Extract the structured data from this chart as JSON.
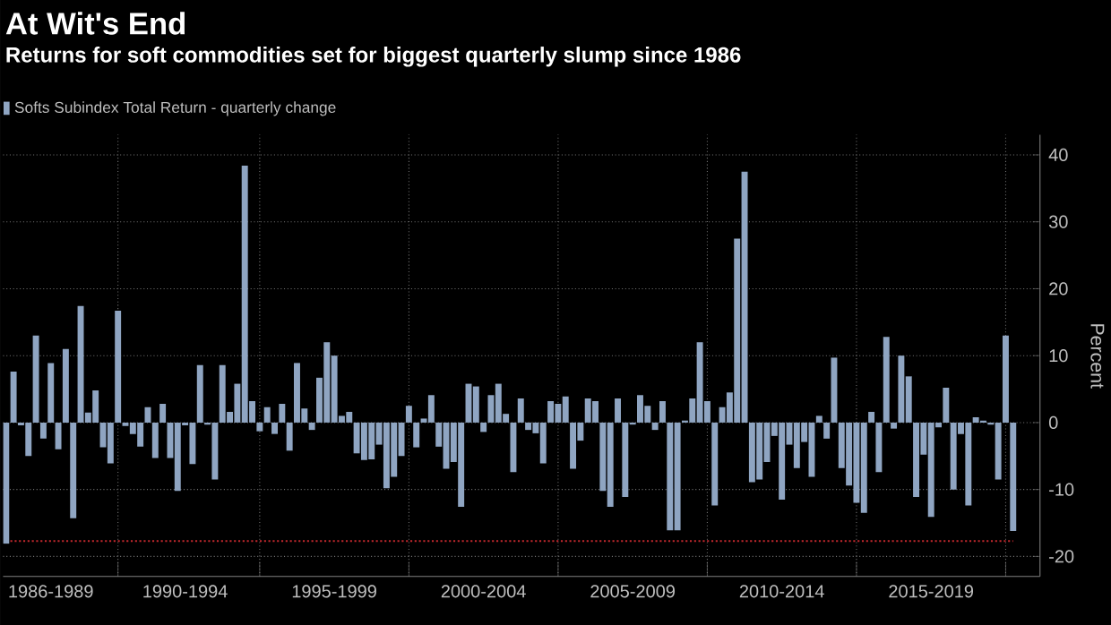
{
  "chart_data": {
    "type": "bar",
    "title": "At Wit's End",
    "subtitle": "Returns for soft commodities set for biggest quarterly slump since 1986",
    "ylabel": "Percent",
    "categories": [
      null,
      null,
      null,
      null,
      null,
      null,
      "1986-1989",
      null,
      null,
      null,
      null,
      null,
      null,
      null,
      null,
      null,
      null,
      null,
      null,
      null,
      null,
      null,
      null,
      null,
      "1990-1994",
      null,
      null,
      null,
      null,
      null,
      null,
      null,
      null,
      null,
      null,
      null,
      null,
      null,
      null,
      null,
      null,
      null,
      null,
      null,
      "1995-1999",
      null,
      null,
      null,
      null,
      null,
      null,
      null,
      null,
      null,
      null,
      null,
      null,
      null,
      null,
      null,
      null,
      null,
      null,
      null,
      "2000-2004",
      null,
      null,
      null,
      null,
      null,
      null,
      null,
      null,
      null,
      null,
      null,
      null,
      null,
      null,
      null,
      null,
      null,
      null,
      null,
      "2005-2009",
      null,
      null,
      null,
      null,
      null,
      null,
      null,
      null,
      null,
      null,
      null,
      null,
      null,
      null,
      null,
      null,
      null,
      null,
      null,
      "2010-2014",
      null,
      null,
      null,
      null,
      null,
      null,
      null,
      null,
      null,
      null,
      null,
      null,
      null,
      null,
      null,
      null,
      null,
      null,
      null,
      "2015-2019",
      null,
      null,
      null,
      null,
      null,
      null,
      null,
      null,
      null,
      null,
      null
    ],
    "series": [
      {
        "name": "Softs Subindex Total Return - quarterly change",
        "color": "#8fa5c2",
        "values": [
          -18.1,
          7.6,
          -0.4,
          -5,
          13,
          -2.4,
          8.9,
          -4,
          11,
          -14.3,
          17.4,
          1.5,
          4.8,
          -3.7,
          -6.1,
          16.7,
          -0.5,
          -1.7,
          -3.6,
          2.3,
          -5.3,
          2.8,
          -5.3,
          -10.2,
          -0.4,
          -6.2,
          8.6,
          -0.3,
          -8.5,
          8.6,
          1.6,
          5.8,
          38.4,
          3.2,
          -1.3,
          2.3,
          -1.7,
          2.8,
          -4.2,
          8.9,
          2.1,
          -1.1,
          6.7,
          12,
          10,
          1,
          1.6,
          -4.6,
          -5.6,
          -5.5,
          -3.3,
          -9.8,
          -8.1,
          -5,
          2.5,
          -3.7,
          0.6,
          4.1,
          -3.6,
          -6.9,
          -5.9,
          -12.6,
          5.8,
          5.4,
          -1.4,
          4.1,
          5.8,
          1.3,
          -7.4,
          3.6,
          -1.1,
          -1.6,
          -6.1,
          3.2,
          2.8,
          3.9,
          -6.9,
          -2.7,
          3.6,
          3.2,
          -10.2,
          -12.6,
          3.6,
          -11.1,
          -0.3,
          4.1,
          2.5,
          -1.1,
          3.2,
          -16.1,
          -16.1,
          0.3,
          3.6,
          12,
          3.2,
          -12.4,
          2.3,
          4.5,
          27.5,
          37.5,
          -8.9,
          -8.5,
          -5.9,
          -2,
          -11.5,
          -3.3,
          -6.8,
          -2.9,
          -8.1,
          1,
          -2.4,
          9.7,
          -6.8,
          -9.4,
          -12,
          -13.5,
          1.6,
          -7.4,
          12.8,
          -0.9,
          10,
          6.9,
          -11.1,
          -4.8,
          -14.1,
          -0.7,
          5.2,
          -10,
          -1.7,
          -12.4,
          0.8,
          0.3,
          -0.3,
          -8.5,
          13,
          -16.2
        ]
      }
    ],
    "ylim": [
      -23,
      43
    ],
    "yticks": [
      -20,
      -10,
      0,
      10,
      20,
      30,
      40
    ],
    "ref_lines": [
      {
        "axis": "y",
        "value": -17.7,
        "color": "#c0282d",
        "line_style": "dotted"
      }
    ],
    "grid": true,
    "legend": "top left"
  }
}
